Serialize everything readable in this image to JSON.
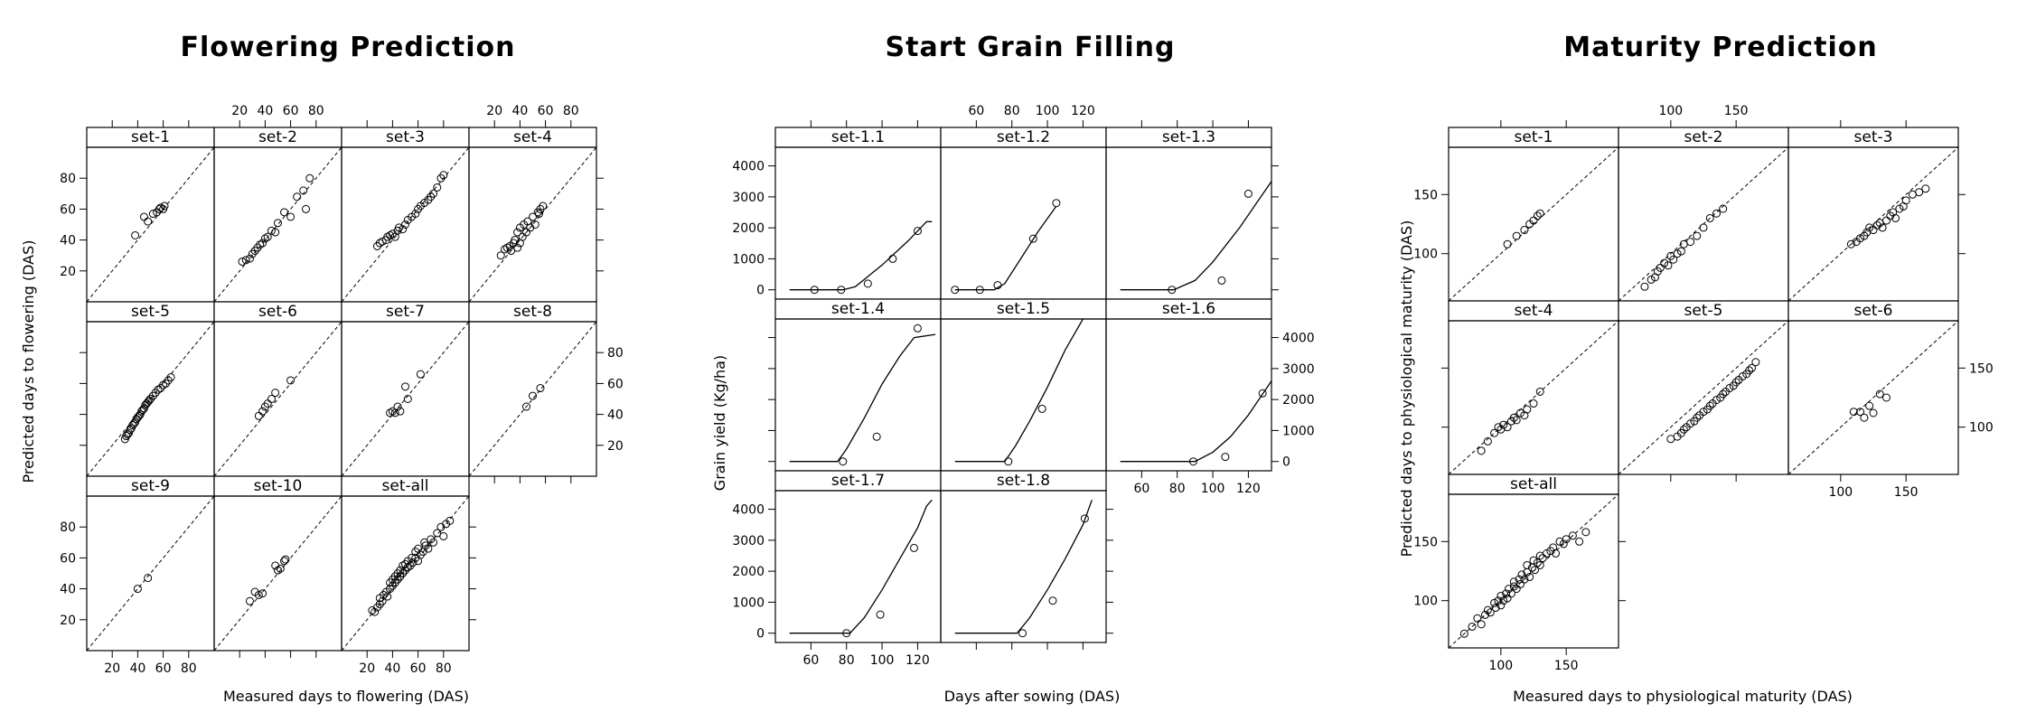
{
  "figure": {
    "panels": [
      {
        "title": "Flowering Prediction",
        "xlabel": "Measured days to flowering (DAS)",
        "ylabel": "Predicted days to flowering (DAS)"
      },
      {
        "title": "Start Grain Filling",
        "xlabel": "Days after sowing (DAS)",
        "ylabel": "Grain yield (Kg/ha)"
      },
      {
        "title": "Maturity Prediction",
        "xlabel": "Measured days to physiological maturity (DAS)",
        "ylabel": "Predicted days to physiological maturity (DAS)"
      }
    ]
  },
  "chart_data": [
    {
      "type": "scatter",
      "title": "Flowering Prediction",
      "xlabel": "Measured days to flowering (DAS)",
      "ylabel": "Predicted days to flowering (DAS)",
      "xlim": [
        0,
        100
      ],
      "ylim": [
        0,
        100
      ],
      "xticks": [
        20,
        40,
        60,
        80
      ],
      "yticks": [
        20,
        40,
        60,
        80
      ],
      "reference_line": "1:1 dashed",
      "layout": "3 rows x 4 columns",
      "panels": [
        {
          "name": "set-1",
          "x": [
            38,
            45,
            48,
            52,
            55,
            57,
            58,
            60,
            61
          ],
          "y": [
            43,
            55,
            52,
            57,
            58,
            60,
            61,
            60,
            62
          ]
        },
        {
          "name": "set-2",
          "x": [
            22,
            25,
            28,
            30,
            32,
            34,
            36,
            38,
            40,
            42,
            45,
            48,
            50,
            55,
            60,
            65,
            70,
            72,
            75
          ],
          "y": [
            26,
            27,
            28,
            31,
            33,
            35,
            37,
            38,
            41,
            42,
            46,
            45,
            51,
            58,
            55,
            68,
            72,
            60,
            80
          ]
        },
        {
          "name": "set-3",
          "x": [
            28,
            30,
            32,
            35,
            36,
            38,
            40,
            42,
            44,
            45,
            48,
            50,
            52,
            55,
            58,
            60,
            62,
            65,
            68,
            70,
            72,
            75,
            78,
            80
          ],
          "y": [
            36,
            38,
            39,
            40,
            42,
            43,
            44,
            42,
            46,
            48,
            47,
            50,
            53,
            55,
            57,
            60,
            62,
            64,
            66,
            68,
            70,
            74,
            80,
            82
          ]
        },
        {
          "name": "set-4",
          "x": [
            25,
            28,
            30,
            32,
            33,
            35,
            36,
            38,
            38,
            40,
            40,
            42,
            43,
            45,
            46,
            48,
            50,
            52,
            54,
            55,
            56,
            58
          ],
          "y": [
            30,
            34,
            35,
            36,
            33,
            38,
            40,
            35,
            45,
            38,
            48,
            42,
            50,
            45,
            52,
            48,
            55,
            50,
            58,
            57,
            60,
            62
          ]
        },
        {
          "name": "set-5",
          "x": [
            30,
            31,
            32,
            33,
            34,
            35,
            36,
            37,
            38,
            39,
            40,
            41,
            42,
            43,
            44,
            45,
            46,
            47,
            48,
            49,
            50,
            52,
            54,
            56,
            58,
            60,
            62,
            64,
            66
          ],
          "y": [
            24,
            26,
            27,
            28,
            30,
            31,
            33,
            34,
            35,
            37,
            38,
            39,
            40,
            42,
            43,
            44,
            46,
            47,
            48,
            49,
            50,
            52,
            54,
            56,
            57,
            59,
            60,
            62,
            64
          ]
        },
        {
          "name": "set-6",
          "x": [
            35,
            38,
            40,
            42,
            45,
            48,
            60
          ],
          "y": [
            39,
            42,
            45,
            47,
            50,
            54,
            62
          ]
        },
        {
          "name": "set-7",
          "x": [
            38,
            40,
            42,
            44,
            46,
            50,
            52,
            62
          ],
          "y": [
            41,
            42,
            41,
            45,
            42,
            58,
            50,
            66
          ]
        },
        {
          "name": "set-8",
          "x": [
            45,
            50,
            56
          ],
          "y": [
            45,
            52,
            57
          ]
        },
        {
          "name": "set-9",
          "x": [
            40,
            48
          ],
          "y": [
            40,
            47
          ]
        },
        {
          "name": "set-10",
          "x": [
            28,
            32,
            35,
            38,
            48,
            50,
            52,
            55,
            56
          ],
          "y": [
            32,
            38,
            36,
            37,
            55,
            52,
            53,
            58,
            59
          ]
        },
        {
          "name": "set-all",
          "x": [
            24,
            26,
            28,
            30,
            30,
            32,
            33,
            35,
            36,
            38,
            38,
            40,
            40,
            42,
            42,
            44,
            44,
            46,
            46,
            48,
            48,
            50,
            50,
            52,
            52,
            54,
            55,
            56,
            58,
            58,
            60,
            60,
            62,
            64,
            65,
            66,
            68,
            70,
            72,
            75,
            78,
            80,
            82,
            85
          ],
          "y": [
            26,
            25,
            28,
            30,
            34,
            32,
            36,
            38,
            35,
            40,
            44,
            42,
            46,
            44,
            48,
            46,
            50,
            48,
            52,
            50,
            55,
            52,
            56,
            54,
            58,
            55,
            60,
            57,
            60,
            64,
            58,
            66,
            62,
            64,
            70,
            68,
            66,
            72,
            70,
            76,
            80,
            74,
            82,
            84
          ]
        }
      ]
    },
    {
      "type": "line",
      "title": "Start Grain Filling",
      "xlabel": "Days after sowing (DAS)",
      "ylabel": "Grain yield (Kg/ha)",
      "xlim": [
        40,
        133
      ],
      "ylim": [
        -300,
        4600
      ],
      "xticks": [
        60,
        80,
        100,
        120
      ],
      "yticks": [
        0,
        1000,
        2000,
        3000,
        4000
      ],
      "series_style": "simulated line with observed open circles",
      "layout": "3 rows x 3 columns",
      "panels": [
        {
          "name": "set-1.1",
          "line_x": [
            48,
            78,
            85,
            100,
            115,
            125,
            128
          ],
          "line_y": [
            0,
            0,
            100,
            800,
            1600,
            2200,
            2200
          ],
          "obs_x": [
            62,
            77,
            92,
            106,
            120
          ],
          "obs_y": [
            0,
            0,
            200,
            1000,
            1900
          ]
        },
        {
          "name": "set-1.2",
          "line_x": [
            48,
            70,
            76,
            85,
            95,
            105
          ],
          "line_y": [
            0,
            0,
            200,
            1000,
            1900,
            2700
          ],
          "obs_x": [
            48,
            62,
            72,
            92,
            105
          ],
          "obs_y": [
            0,
            0,
            150,
            1650,
            2800
          ]
        },
        {
          "name": "set-1.3",
          "line_x": [
            48,
            78,
            90,
            100,
            115,
            133
          ],
          "line_y": [
            0,
            0,
            300,
            900,
            2000,
            3500
          ],
          "obs_x": [
            77,
            105,
            120
          ],
          "obs_y": [
            0,
            300,
            3100
          ]
        },
        {
          "name": "set-1.4",
          "line_x": [
            48,
            75,
            80,
            90,
            100,
            110,
            118,
            130
          ],
          "line_y": [
            0,
            0,
            400,
            1400,
            2500,
            3400,
            4000,
            4100
          ],
          "obs_x": [
            78,
            97,
            120
          ],
          "obs_y": [
            0,
            800,
            4300
          ]
        },
        {
          "name": "set-1.5",
          "line_x": [
            48,
            76,
            82,
            90,
            100,
            110,
            120
          ],
          "line_y": [
            0,
            0,
            500,
            1300,
            2400,
            3600,
            4600
          ],
          "obs_x": [
            78,
            97
          ],
          "obs_y": [
            0,
            1700
          ]
        },
        {
          "name": "set-1.6",
          "line_x": [
            48,
            90,
            100,
            110,
            120,
            133
          ],
          "line_y": [
            0,
            0,
            300,
            800,
            1500,
            2600
          ],
          "obs_x": [
            89,
            107,
            128
          ],
          "obs_y": [
            0,
            150,
            2200
          ]
        },
        {
          "name": "set-1.7",
          "line_x": [
            48,
            82,
            90,
            100,
            110,
            120,
            125,
            128
          ],
          "line_y": [
            0,
            0,
            500,
            1400,
            2400,
            3400,
            4100,
            4300
          ],
          "obs_x": [
            80,
            99,
            118
          ],
          "obs_y": [
            0,
            600,
            2750
          ]
        },
        {
          "name": "set-1.8",
          "line_x": [
            48,
            83,
            90,
            100,
            110,
            120,
            125
          ],
          "line_y": [
            0,
            0,
            500,
            1400,
            2400,
            3500,
            4300
          ],
          "obs_x": [
            86,
            103,
            121
          ],
          "obs_y": [
            0,
            1050,
            3700
          ]
        }
      ]
    },
    {
      "type": "scatter",
      "title": "Maturity Prediction",
      "xlabel": "Measured days to physiological maturity (DAS)",
      "ylabel": "Predicted days to physiological maturity (DAS)",
      "xlim": [
        60,
        190
      ],
      "ylim": [
        60,
        190
      ],
      "xticks": [
        100,
        150
      ],
      "yticks": [
        100,
        150
      ],
      "reference_line": "1:1 dashed",
      "layout": "3 rows x 3 columns",
      "panels": [
        {
          "name": "set-1",
          "x": [
            105,
            112,
            118,
            122,
            125,
            128,
            130
          ],
          "y": [
            108,
            115,
            120,
            125,
            128,
            132,
            134
          ]
        },
        {
          "name": "set-2",
          "x": [
            80,
            85,
            88,
            90,
            92,
            95,
            98,
            100,
            102,
            105,
            108,
            110,
            115,
            120,
            125,
            130,
            135,
            140
          ],
          "y": [
            72,
            78,
            80,
            85,
            88,
            92,
            90,
            98,
            95,
            100,
            102,
            108,
            110,
            115,
            122,
            130,
            134,
            138
          ]
        },
        {
          "name": "set-3",
          "x": [
            108,
            112,
            115,
            118,
            120,
            122,
            125,
            128,
            130,
            132,
            135,
            138,
            140,
            142,
            145,
            148,
            150,
            155,
            160,
            165
          ],
          "y": [
            108,
            110,
            113,
            115,
            118,
            122,
            120,
            124,
            126,
            122,
            128,
            132,
            135,
            130,
            138,
            140,
            145,
            150,
            152,
            155
          ]
        },
        {
          "name": "set-4",
          "x": [
            85,
            90,
            95,
            98,
            100,
            102,
            105,
            108,
            110,
            112,
            115,
            118,
            120,
            125,
            130
          ],
          "y": [
            80,
            88,
            95,
            100,
            98,
            102,
            100,
            105,
            108,
            106,
            112,
            110,
            115,
            120,
            130
          ]
        },
        {
          "name": "set-5",
          "x": [
            100,
            105,
            108,
            110,
            112,
            115,
            118,
            120,
            122,
            125,
            128,
            130,
            132,
            135,
            138,
            140,
            142,
            145,
            148,
            150,
            152,
            155,
            158,
            160,
            162,
            165
          ],
          "y": [
            90,
            92,
            95,
            98,
            100,
            103,
            105,
            108,
            110,
            113,
            115,
            118,
            120,
            123,
            125,
            128,
            130,
            133,
            135,
            138,
            140,
            143,
            145,
            148,
            150,
            155
          ]
        },
        {
          "name": "set-6",
          "x": [
            110,
            115,
            118,
            122,
            125,
            130,
            135
          ],
          "y": [
            113,
            113,
            108,
            118,
            112,
            128,
            125
          ]
        },
        {
          "name": "set-all",
          "x": [
            72,
            78,
            82,
            85,
            88,
            90,
            92,
            95,
            96,
            98,
            100,
            100,
            102,
            104,
            105,
            106,
            108,
            110,
            110,
            112,
            114,
            115,
            116,
            118,
            120,
            120,
            122,
            124,
            125,
            126,
            128,
            130,
            130,
            132,
            135,
            138,
            140,
            142,
            145,
            148,
            150,
            155,
            160,
            165
          ],
          "y": [
            72,
            78,
            85,
            80,
            88,
            92,
            90,
            98,
            94,
            100,
            96,
            104,
            100,
            106,
            102,
            110,
            106,
            112,
            116,
            110,
            118,
            114,
            122,
            118,
            124,
            130,
            120,
            128,
            134,
            126,
            132,
            130,
            138,
            136,
            140,
            142,
            145,
            140,
            150,
            148,
            152,
            155,
            150,
            158
          ]
        }
      ]
    }
  ]
}
